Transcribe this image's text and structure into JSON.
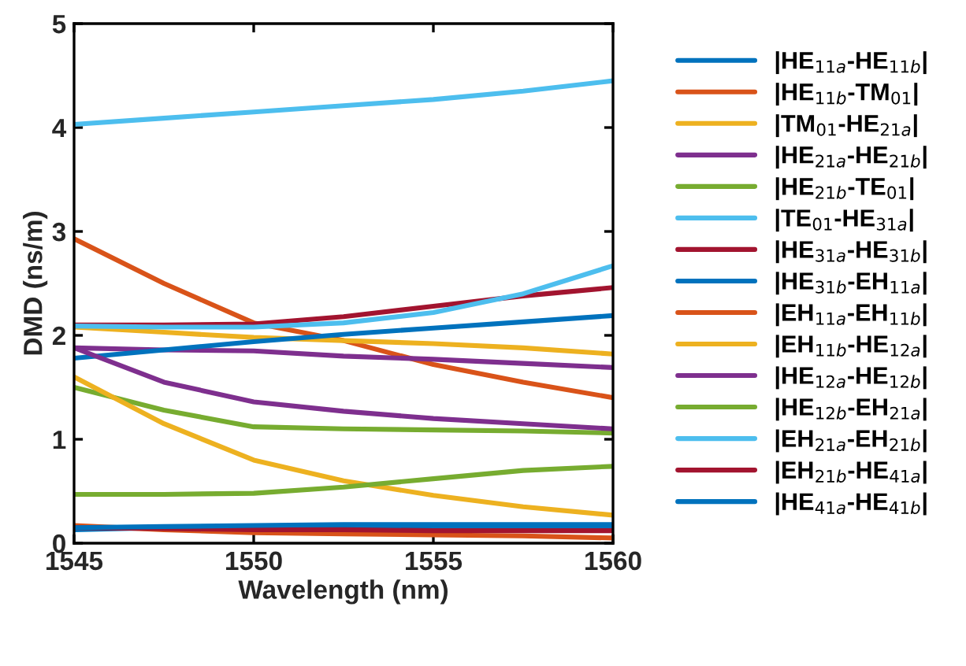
{
  "chart_data": {
    "type": "line",
    "xlabel": "Wavelength (nm)",
    "ylabel": "DMD (ns/m)",
    "x": [
      1545,
      1547.5,
      1550,
      1552.5,
      1555,
      1557.5,
      1560
    ],
    "xlim": [
      1545,
      1560
    ],
    "xticks": [
      1545,
      1550,
      1555,
      1560
    ],
    "ylim": [
      0,
      5
    ],
    "yticks": [
      0,
      1,
      2,
      3,
      4,
      5
    ],
    "grid": false,
    "legend": "right",
    "marker": "none",
    "line_style": "solid",
    "series": [
      {
        "name": "|HE$_{11a}$-HE$_{11b}$|",
        "color": "#0072bd",
        "values": [
          0.13,
          0.15,
          0.16,
          0.16,
          0.16,
          0.16,
          0.16
        ]
      },
      {
        "name": "|HE$_{11b}$-TM$_{01}$|",
        "color": "#d95319",
        "values": [
          2.93,
          2.5,
          2.12,
          1.95,
          1.72,
          1.55,
          1.4
        ]
      },
      {
        "name": "|TM$_{01}$-HE$_{21a}$|",
        "color": "#edb120",
        "values": [
          2.08,
          2.03,
          1.98,
          1.95,
          1.92,
          1.88,
          1.82
        ]
      },
      {
        "name": "|HE$_{21a}$-HE$_{21b}$|",
        "color": "#7e2f8e",
        "values": [
          1.88,
          1.86,
          1.85,
          1.8,
          1.77,
          1.73,
          1.69
        ]
      },
      {
        "name": "|HE$_{21b}$-TE$_{01}$|",
        "color": "#77ac30",
        "values": [
          1.5,
          1.28,
          1.12,
          1.1,
          1.09,
          1.08,
          1.06
        ]
      },
      {
        "name": "|TE$_{01}$-HE$_{31a}$|",
        "color": "#4dbeee",
        "values": [
          4.03,
          4.09,
          4.15,
          4.21,
          4.27,
          4.35,
          4.45
        ]
      },
      {
        "name": "|HE$_{31a}$-HE$_{31b}$|",
        "color": "#a2142f",
        "values": [
          2.1,
          2.1,
          2.11,
          2.18,
          2.28,
          2.38,
          2.46
        ]
      },
      {
        "name": "|HE$_{31b}$-EH$_{11a}$|",
        "color": "#0072bd",
        "values": [
          1.78,
          1.86,
          1.94,
          2.01,
          2.07,
          2.13,
          2.19
        ]
      },
      {
        "name": "|EH$_{11a}$-EH$_{11b}$|",
        "color": "#d95319",
        "values": [
          0.17,
          0.13,
          0.1,
          0.09,
          0.08,
          0.07,
          0.05
        ]
      },
      {
        "name": "|EH$_{11b}$-HE$_{12a}$|",
        "color": "#edb120",
        "values": [
          1.6,
          1.15,
          0.8,
          0.6,
          0.46,
          0.35,
          0.27
        ]
      },
      {
        "name": "|HE$_{12a}$-HE$_{12b}$|",
        "color": "#7e2f8e",
        "values": [
          1.88,
          1.55,
          1.36,
          1.27,
          1.2,
          1.15,
          1.1
        ]
      },
      {
        "name": "|HE$_{12b}$-EH$_{21a}$|",
        "color": "#77ac30",
        "values": [
          0.47,
          0.47,
          0.48,
          0.54,
          0.62,
          0.7,
          0.74
        ]
      },
      {
        "name": "|EH$_{21a}$-EH$_{21b}$|",
        "color": "#4dbeee",
        "values": [
          2.09,
          2.08,
          2.08,
          2.12,
          2.22,
          2.4,
          2.67
        ]
      },
      {
        "name": "|EH$_{21b}$-HE$_{41a}$|",
        "color": "#a2142f",
        "values": [
          0.15,
          0.14,
          0.13,
          0.13,
          0.12,
          0.12,
          0.12
        ]
      },
      {
        "name": "|HE$_{41a}$-HE$_{41b}$|",
        "color": "#0072bd",
        "values": [
          0.15,
          0.16,
          0.17,
          0.18,
          0.18,
          0.18,
          0.18
        ]
      }
    ]
  }
}
